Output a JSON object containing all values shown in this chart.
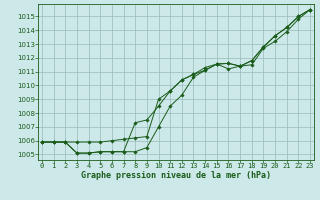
{
  "title": "Graphe pression niveau de la mer (hPa)",
  "bg_color": "#cce8e8",
  "grid_color": "#99bbbb",
  "line_color": "#1a5c1a",
  "x_ticks": [
    0,
    1,
    2,
    3,
    4,
    5,
    6,
    7,
    8,
    9,
    10,
    11,
    12,
    13,
    14,
    15,
    16,
    17,
    18,
    19,
    20,
    21,
    22,
    23
  ],
  "y_ticks": [
    1005,
    1006,
    1007,
    1008,
    1009,
    1010,
    1011,
    1012,
    1013,
    1014,
    1015
  ],
  "ylim": [
    1004.6,
    1015.9
  ],
  "xlim": [
    -0.3,
    23.3
  ],
  "series": [
    [
      1005.9,
      1005.9,
      1005.9,
      1005.9,
      1005.9,
      1005.9,
      1006.0,
      1006.1,
      1006.2,
      1006.3,
      1009.0,
      1009.6,
      1010.4,
      1010.8,
      1011.1,
      1011.55,
      1011.6,
      1011.4,
      1011.8,
      1012.8,
      1013.6,
      1014.2,
      1015.0,
      1015.5
    ],
    [
      1005.9,
      1005.9,
      1005.9,
      1005.1,
      1005.1,
      1005.2,
      1005.2,
      1005.2,
      1005.2,
      1005.5,
      1007.0,
      1008.5,
      1009.3,
      1010.6,
      1011.1,
      1011.55,
      1011.6,
      1011.4,
      1011.8,
      1012.8,
      1013.6,
      1014.2,
      1015.0,
      1015.5
    ],
    [
      1005.9,
      1005.9,
      1005.9,
      1005.1,
      1005.1,
      1005.2,
      1005.2,
      1005.2,
      1007.3,
      1007.5,
      1008.5,
      1009.6,
      1010.4,
      1010.8,
      1011.3,
      1011.55,
      1011.2,
      1011.4,
      1011.5,
      1012.7,
      1013.2,
      1013.9,
      1014.8,
      1015.5
    ]
  ]
}
